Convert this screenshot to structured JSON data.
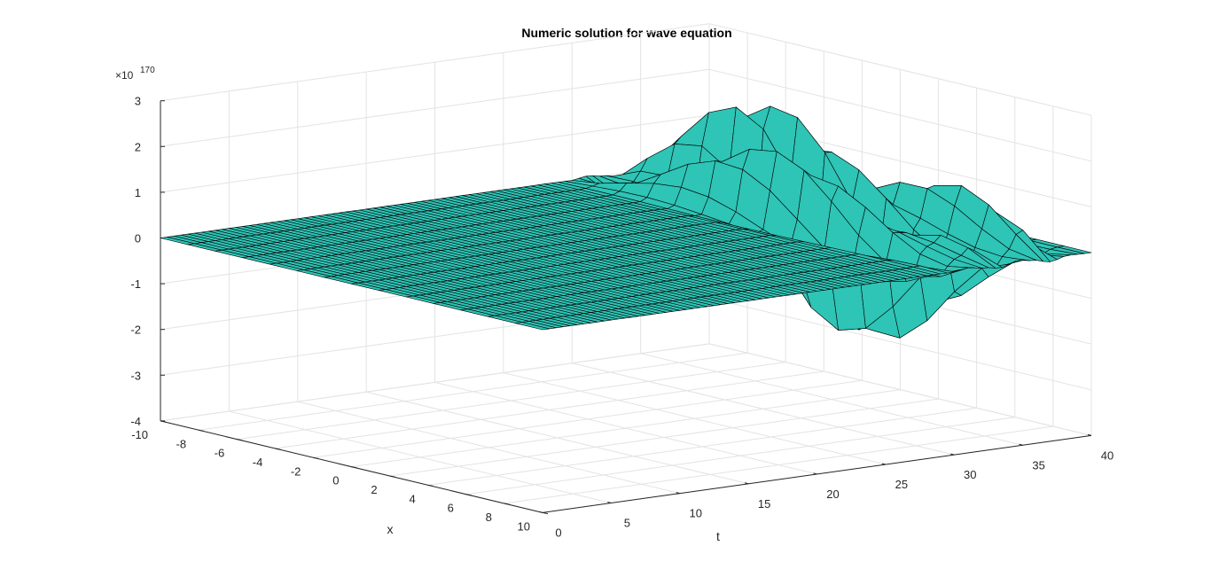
{
  "chart_data": {
    "type": "surface",
    "title": "Numeric solution for wave equation",
    "xlabel": "t",
    "ylabel": "x",
    "zlabel": "",
    "t_range": [
      0,
      40
    ],
    "x_range": [
      -10,
      10
    ],
    "z_range": [
      -4,
      3
    ],
    "z_exponent_base": "×10",
    "z_exponent_power": "170",
    "t_ticks": [
      "0",
      "5",
      "10",
      "15",
      "20",
      "25",
      "30",
      "35",
      "40"
    ],
    "x_ticks": [
      "-10",
      "-8",
      "-6",
      "-4",
      "-2",
      "0",
      "2",
      "4",
      "6",
      "8",
      "10"
    ],
    "z_ticks": [
      "-4",
      "-3",
      "-2",
      "-1",
      "0",
      "1",
      "2",
      "3"
    ],
    "grid": true,
    "surface_color": "#2ec4b6",
    "edge_color": "#000000",
    "description_points": {
      "flat_until_t": 27,
      "envelope_peaks": [
        {
          "t": 31,
          "amplitude": 1.6
        },
        {
          "t": 34,
          "amplitude": 2.85
        },
        {
          "t": 37,
          "amplitude": 2.6
        }
      ]
    }
  }
}
